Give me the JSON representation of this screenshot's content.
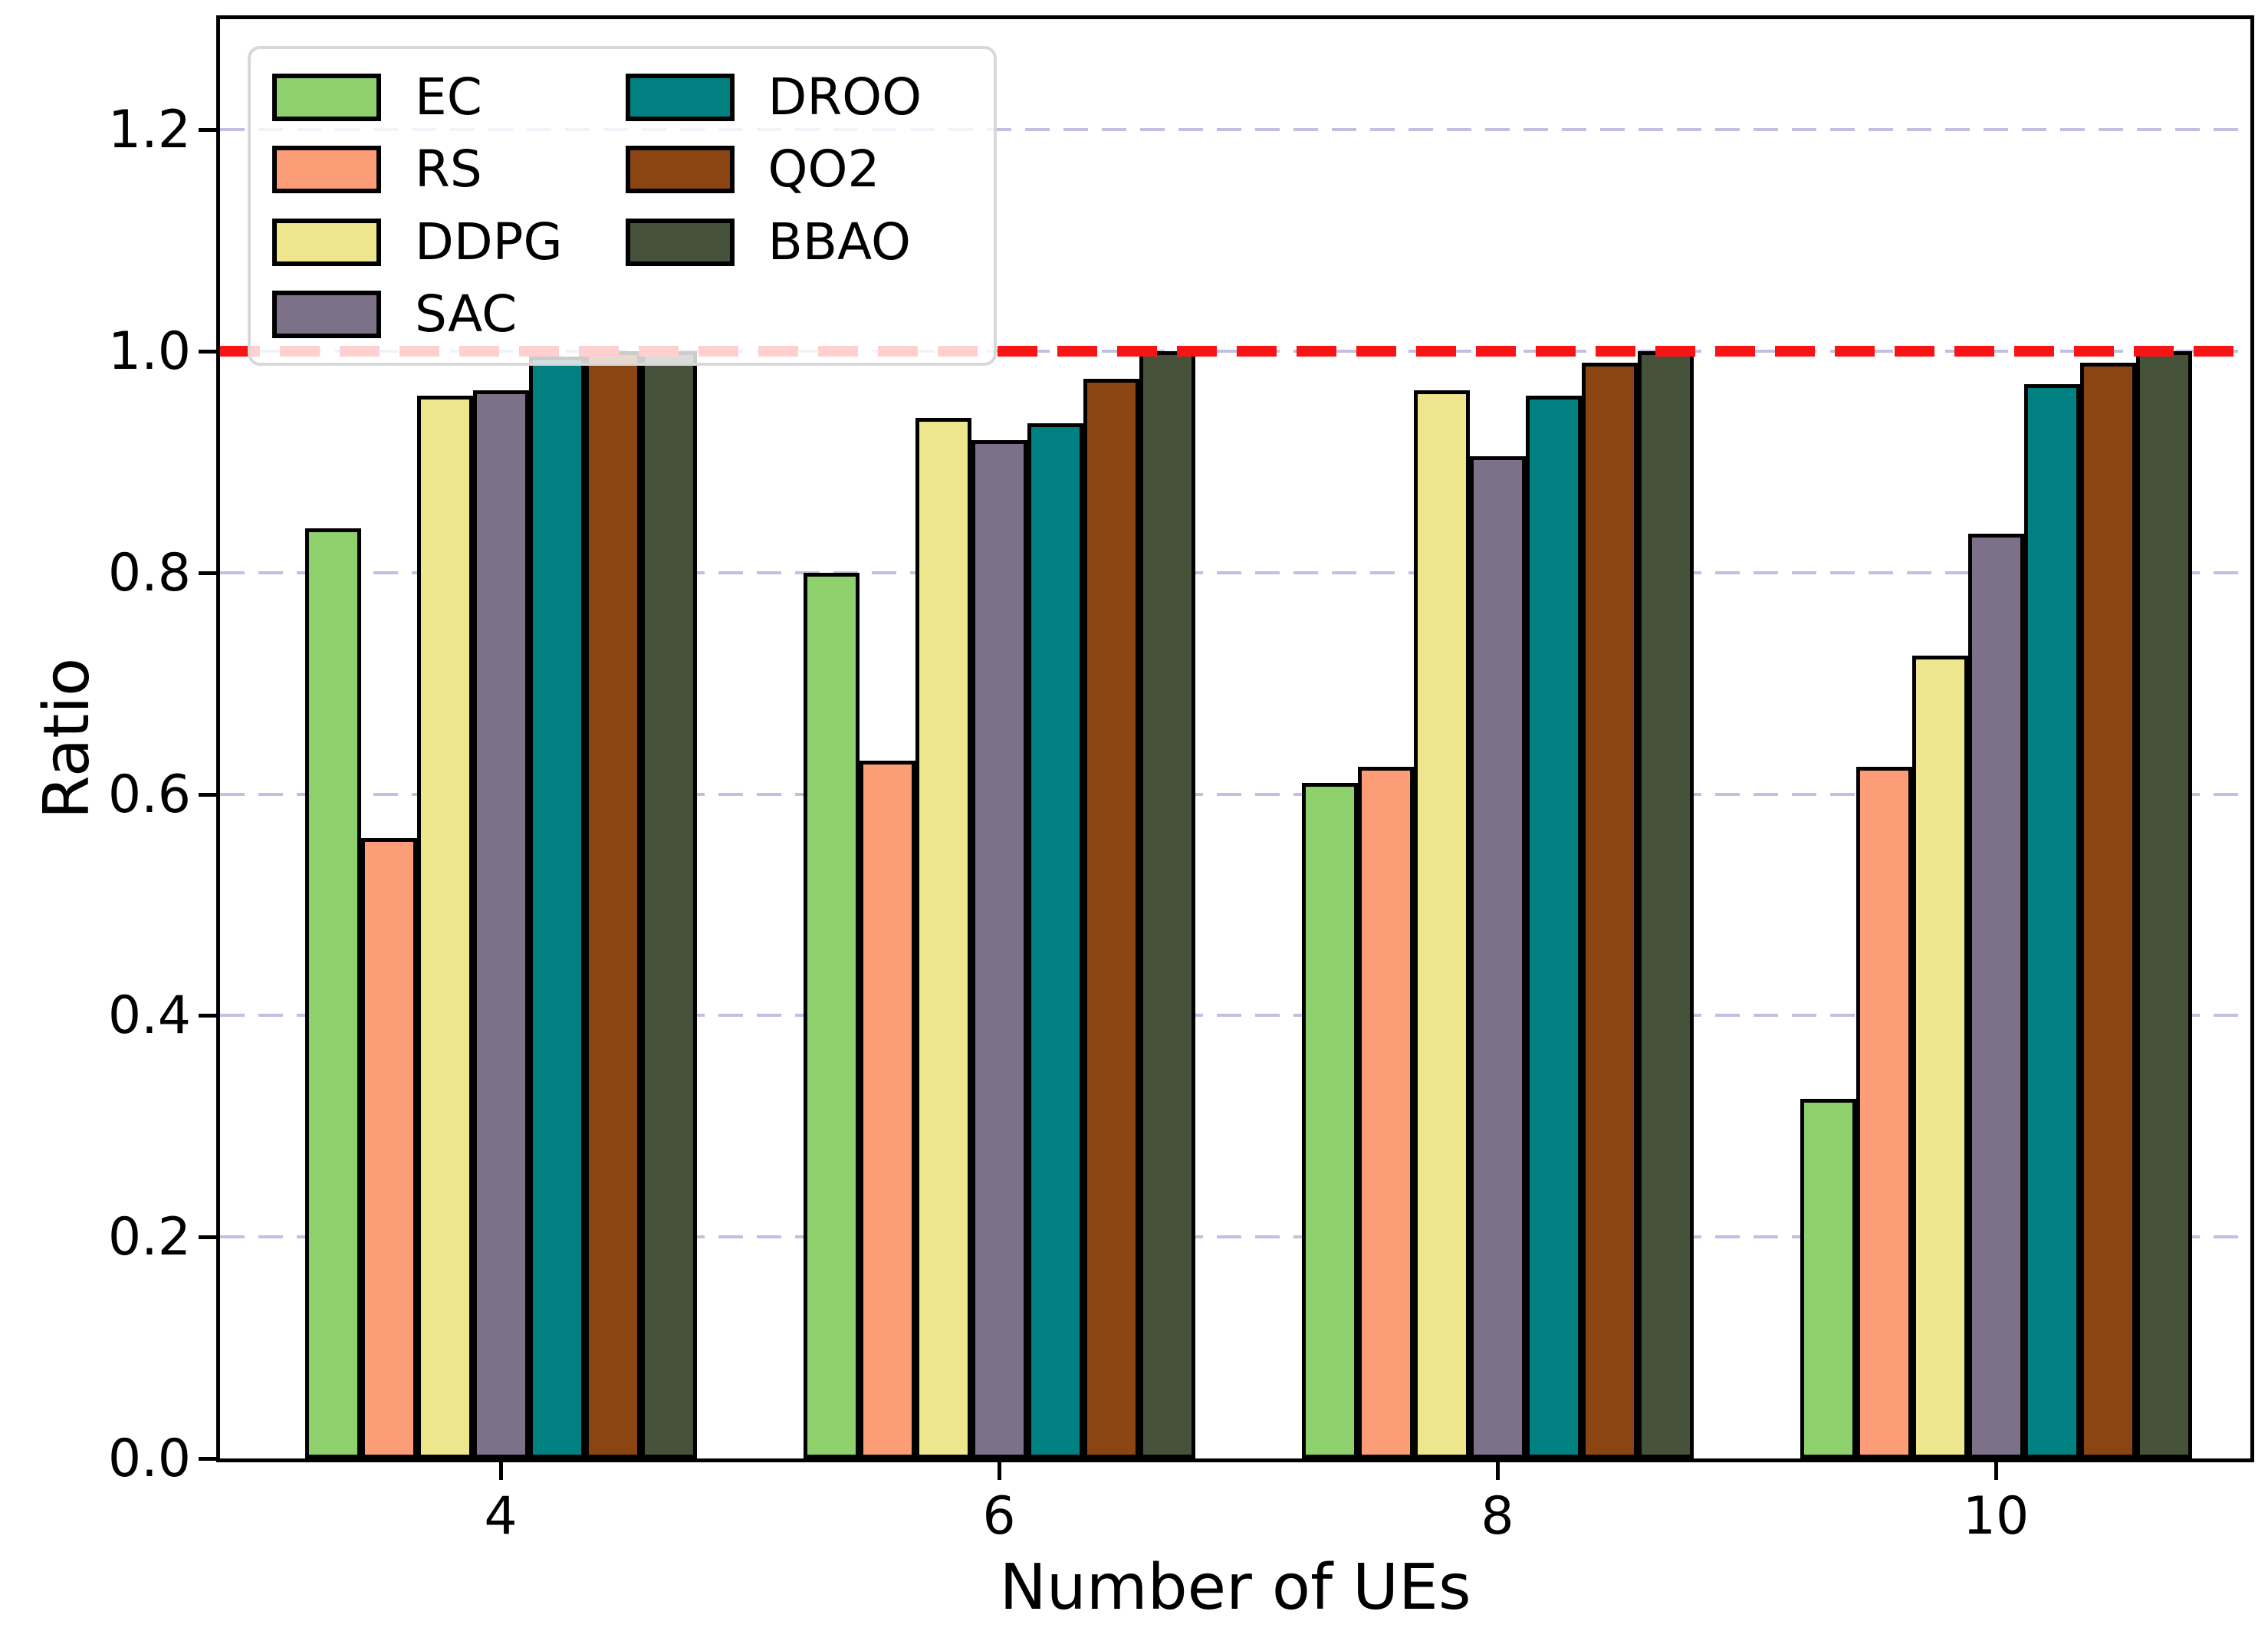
{
  "chart_data": {
    "type": "bar",
    "title": "",
    "xlabel": "Number of UEs",
    "ylabel": "Ratio",
    "categories": [
      "4",
      "6",
      "8",
      "10"
    ],
    "series": [
      {
        "name": "EC",
        "color": "#8dd06c",
        "values": [
          0.84,
          0.8,
          0.61,
          0.325
        ]
      },
      {
        "name": "RS",
        "color": "#fc9d78",
        "values": [
          0.56,
          0.63,
          0.625,
          0.625
        ]
      },
      {
        "name": "DDPG",
        "color": "#ede68c",
        "values": [
          0.96,
          0.94,
          0.965,
          0.725
        ]
      },
      {
        "name": "SAC",
        "color": "#7d7189",
        "values": [
          0.965,
          0.92,
          0.905,
          0.835
        ]
      },
      {
        "name": "DROO",
        "color": "#008080",
        "values": [
          0.995,
          0.935,
          0.96,
          0.97
        ]
      },
      {
        "name": "QO2",
        "color": "#8b4513",
        "values": [
          1.0,
          0.975,
          0.99,
          0.99
        ]
      },
      {
        "name": "BBAO",
        "color": "#47523b",
        "values": [
          1.0,
          1.0,
          1.0,
          1.0
        ]
      }
    ],
    "y_ticks": {
      "values": [
        0.0,
        0.2,
        0.4,
        0.6,
        0.8,
        1.0,
        1.2
      ],
      "labels": [
        "0.0",
        "0.2",
        "0.4",
        "0.6",
        "0.8",
        "1.0",
        "1.2"
      ]
    },
    "ylim": [
      0,
      1.3
    ],
    "grid": true,
    "grid_color": "#c3bee2",
    "reference_line": {
      "y": 1.0,
      "color": "#f81414",
      "style": "dashed"
    },
    "legend_position": "upper left",
    "legend_columns": 2,
    "bar_edge_color": "#000000",
    "axis_color": "#000000"
  }
}
